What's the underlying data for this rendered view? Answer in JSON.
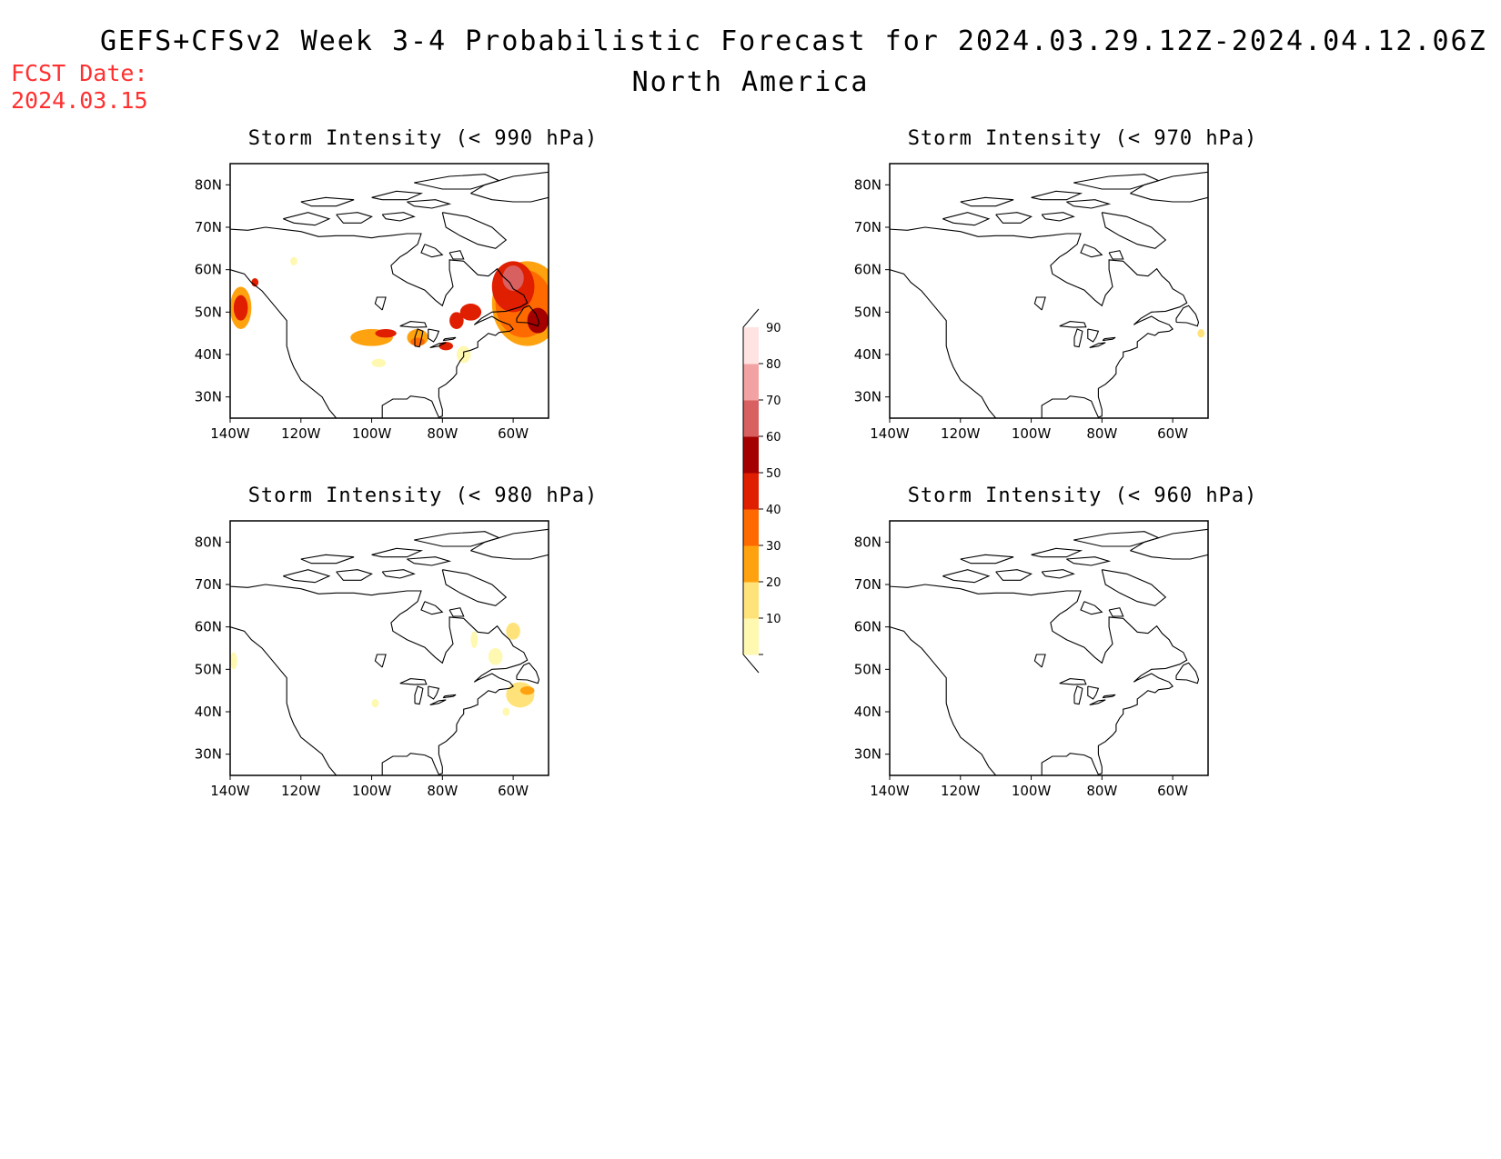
{
  "header": {
    "title": "GEFS+CFSv2 Week 3-4 Probabilistic Forecast for 2024.03.29.12Z-2024.04.12.06Z",
    "subtitle": "North America",
    "fcst_label": "FCST Date:",
    "fcst_date": "2024.03.15"
  },
  "colors": {
    "title_text": "#000000",
    "fcst_text": "#ff3030",
    "coast": "#000000"
  },
  "axes": {
    "lon_ticks": [
      "140W",
      "120W",
      "100W",
      "80W",
      "60W"
    ],
    "lat_ticks": [
      "80N",
      "70N",
      "60N",
      "50N",
      "40N",
      "30N"
    ]
  },
  "colorbar": {
    "levels": [
      "10",
      "20",
      "30",
      "40",
      "50",
      "60",
      "70",
      "80",
      "90"
    ],
    "colors": [
      "#fff8b0",
      "#ffe37a",
      "#ffa20f",
      "#ff6a00",
      "#e01e00",
      "#a50000",
      "#d86060",
      "#f2a2a2",
      "#ffe3e3"
    ]
  },
  "panels": [
    {
      "title": "Storm Intensity (< 990 hPa)",
      "blobs": [
        {
          "lon": -56,
          "lat": 52,
          "rx": 10,
          "ry": 10,
          "level": 2
        },
        {
          "lon": -57,
          "lat": 52,
          "rx": 8,
          "ry": 8,
          "level": 3
        },
        {
          "lon": -60,
          "lat": 56,
          "rx": 6,
          "ry": 6,
          "level": 4
        },
        {
          "lon": -60,
          "lat": 58,
          "rx": 3,
          "ry": 3,
          "level": 6
        },
        {
          "lon": -53,
          "lat": 48,
          "rx": 3,
          "ry": 3,
          "level": 5
        },
        {
          "lon": -72,
          "lat": 50,
          "rx": 3,
          "ry": 2,
          "level": 4
        },
        {
          "lon": -76,
          "lat": 48,
          "rx": 2,
          "ry": 2,
          "level": 4
        },
        {
          "lon": -137,
          "lat": 51,
          "rx": 3,
          "ry": 5,
          "level": 2
        },
        {
          "lon": -137,
          "lat": 51,
          "rx": 2,
          "ry": 3,
          "level": 4
        },
        {
          "lon": -100,
          "lat": 44,
          "rx": 6,
          "ry": 2,
          "level": 2
        },
        {
          "lon": -96,
          "lat": 45,
          "rx": 3,
          "ry": 1,
          "level": 4
        },
        {
          "lon": -87,
          "lat": 44,
          "rx": 3,
          "ry": 2,
          "level": 2
        },
        {
          "lon": -87,
          "lat": 43,
          "rx": 2,
          "ry": 1,
          "level": 3
        },
        {
          "lon": -79,
          "lat": 42,
          "rx": 2,
          "ry": 1,
          "level": 4
        },
        {
          "lon": -74,
          "lat": 40,
          "rx": 2,
          "ry": 2,
          "level": 0
        },
        {
          "lon": -98,
          "lat": 38,
          "rx": 2,
          "ry": 1,
          "level": 0
        },
        {
          "lon": -122,
          "lat": 62,
          "rx": 1,
          "ry": 1,
          "level": 0
        },
        {
          "lon": -133,
          "lat": 57,
          "rx": 1,
          "ry": 1,
          "level": 4
        }
      ]
    },
    {
      "title": "Storm Intensity (< 970 hPa)",
      "blobs": [
        {
          "lon": -52,
          "lat": 45,
          "rx": 1,
          "ry": 1,
          "level": 1
        }
      ]
    },
    {
      "title": "Storm Intensity (< 980 hPa)",
      "blobs": [
        {
          "lon": -58,
          "lat": 44,
          "rx": 4,
          "ry": 3,
          "level": 1
        },
        {
          "lon": -56,
          "lat": 45,
          "rx": 2,
          "ry": 1,
          "level": 2
        },
        {
          "lon": -60,
          "lat": 59,
          "rx": 2,
          "ry": 2,
          "level": 1
        },
        {
          "lon": -65,
          "lat": 53,
          "rx": 2,
          "ry": 2,
          "level": 0
        },
        {
          "lon": -71,
          "lat": 57,
          "rx": 1,
          "ry": 2,
          "level": 0
        },
        {
          "lon": -139,
          "lat": 52,
          "rx": 1,
          "ry": 2,
          "level": 0
        },
        {
          "lon": -99,
          "lat": 42,
          "rx": 1,
          "ry": 1,
          "level": 0
        },
        {
          "lon": -62,
          "lat": 40,
          "rx": 1,
          "ry": 1,
          "level": 0
        }
      ]
    },
    {
      "title": "Storm Intensity (< 960 hPa)",
      "blobs": []
    }
  ]
}
